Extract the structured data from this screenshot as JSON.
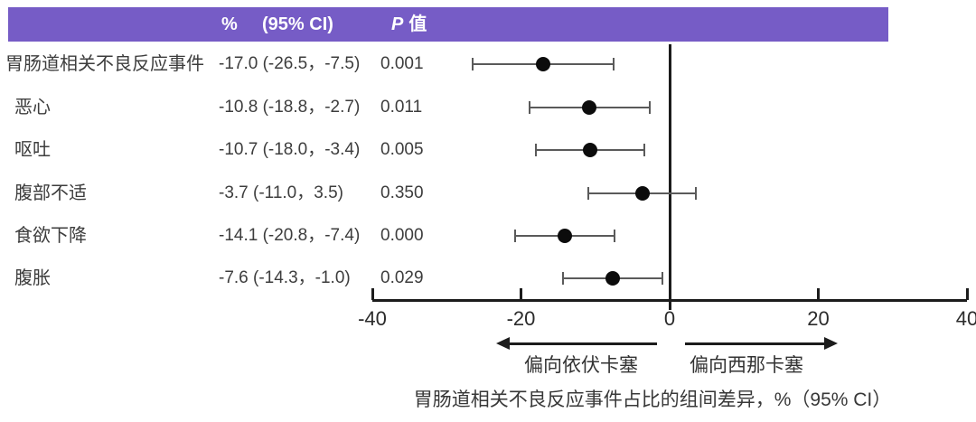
{
  "colors": {
    "header_bg": "#765cc6",
    "text": "#3d3d3d",
    "axis": "#1c1c1c",
    "errorbar": "#5a5a5a",
    "marker": "#0c0c0c"
  },
  "header": {
    "percent_label": "%",
    "ci_label": "(95% CI)",
    "p_label_italic": "P",
    "p_label_rest": "值"
  },
  "chart_data": {
    "type": "forest",
    "xlim": [
      -40,
      40
    ],
    "x_ticks": [
      -40,
      -20,
      0,
      20,
      40
    ],
    "zero_line": 0,
    "grid": false,
    "rows": [
      {
        "label": "胃肠道相关不良反应事件",
        "estimate": -17.0,
        "ci_low": -26.5,
        "ci_high": -7.5,
        "ci_text": "-17.0 (-26.5，-7.5)",
        "p": "0.001"
      },
      {
        "label": "恶心",
        "estimate": -10.8,
        "ci_low": -18.8,
        "ci_high": -2.7,
        "ci_text": "-10.8 (-18.8，-2.7)",
        "p": "0.011"
      },
      {
        "label": "呕吐",
        "estimate": -10.7,
        "ci_low": -18.0,
        "ci_high": -3.4,
        "ci_text": "-10.7 (-18.0，-3.4)",
        "p": "0.005"
      },
      {
        "label": "腹部不适",
        "estimate": -3.7,
        "ci_low": -11.0,
        "ci_high": 3.5,
        "ci_text": "-3.7 (-11.0，3.5)",
        "p": "0.350"
      },
      {
        "label": "食欲下降",
        "estimate": -14.1,
        "ci_low": -20.8,
        "ci_high": -7.4,
        "ci_text": "-14.1 (-20.8，-7.4)",
        "p": "0.000"
      },
      {
        "label": "腹胀",
        "estimate": -7.6,
        "ci_low": -14.3,
        "ci_high": -1.0,
        "ci_text": "-7.6 (-14.3，-1.0)",
        "p": "0.029"
      }
    ],
    "left_arrow_label": "偏向依伏卡塞",
    "right_arrow_label": "偏向西那卡塞",
    "xlabel": "胃肠道相关不良反应事件占比的组间差异，%（95% CI）"
  }
}
